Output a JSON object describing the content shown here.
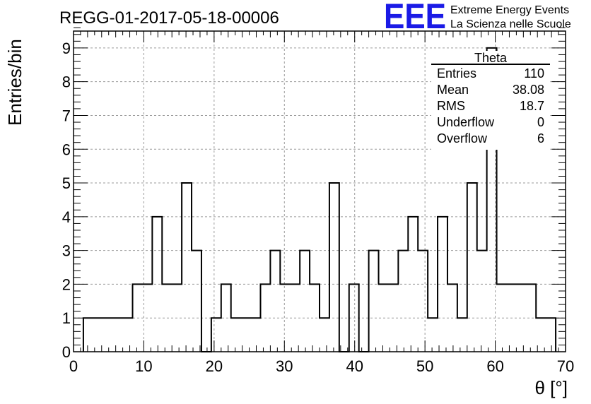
{
  "header": {
    "run_title": "REGG-01-2017-05-18-00006",
    "logo_text": "EEE",
    "brand_line1": "Extreme Energy Events",
    "brand_line2": "La Scienza nelle Scuole",
    "brand_color": "#1a1ae6"
  },
  "stats": {
    "title": "Theta",
    "rows": [
      {
        "label": "Entries",
        "value": "110"
      },
      {
        "label": "Mean",
        "value": "38.08"
      },
      {
        "label": "RMS",
        "value": "18.7"
      },
      {
        "label": "Underflow",
        "value": "0"
      },
      {
        "label": "Overflow",
        "value": "6"
      }
    ]
  },
  "chart_data": {
    "type": "histogram",
    "title": "REGG-01-2017-05-18-00006",
    "xlabel": "θ [°]",
    "ylabel": "Entries/bin",
    "xlim": [
      0,
      70
    ],
    "ylim": [
      0,
      9.5
    ],
    "x_ticks": [
      0,
      10,
      20,
      30,
      40,
      50,
      60,
      70
    ],
    "y_ticks": [
      0,
      1,
      2,
      3,
      4,
      5,
      6,
      7,
      8,
      9
    ],
    "grid": true,
    "legend": "top-right",
    "bins": [
      {
        "x0": 1.4,
        "x1": 8.4,
        "y": 1
      },
      {
        "x0": 8.4,
        "x1": 11.2,
        "y": 2
      },
      {
        "x0": 11.2,
        "x1": 12.6,
        "y": 4
      },
      {
        "x0": 12.6,
        "x1": 15.4,
        "y": 2
      },
      {
        "x0": 15.4,
        "x1": 16.8,
        "y": 5
      },
      {
        "x0": 16.8,
        "x1": 18.2,
        "y": 3
      },
      {
        "x0": 18.2,
        "x1": 19.6,
        "y": 0
      },
      {
        "x0": 19.6,
        "x1": 21.0,
        "y": 1
      },
      {
        "x0": 21.0,
        "x1": 22.4,
        "y": 2
      },
      {
        "x0": 22.4,
        "x1": 26.6,
        "y": 1
      },
      {
        "x0": 26.6,
        "x1": 28.0,
        "y": 2
      },
      {
        "x0": 28.0,
        "x1": 29.4,
        "y": 3
      },
      {
        "x0": 29.4,
        "x1": 32.2,
        "y": 2
      },
      {
        "x0": 32.2,
        "x1": 33.6,
        "y": 3
      },
      {
        "x0": 33.6,
        "x1": 35.0,
        "y": 2
      },
      {
        "x0": 35.0,
        "x1": 36.4,
        "y": 1
      },
      {
        "x0": 36.4,
        "x1": 37.8,
        "y": 5
      },
      {
        "x0": 37.8,
        "x1": 39.2,
        "y": 0
      },
      {
        "x0": 39.2,
        "x1": 40.6,
        "y": 2
      },
      {
        "x0": 40.6,
        "x1": 42.0,
        "y": 0
      },
      {
        "x0": 42.0,
        "x1": 43.4,
        "y": 3
      },
      {
        "x0": 43.4,
        "x1": 46.2,
        "y": 2
      },
      {
        "x0": 46.2,
        "x1": 47.6,
        "y": 3
      },
      {
        "x0": 47.6,
        "x1": 49.0,
        "y": 4
      },
      {
        "x0": 49.0,
        "x1": 50.4,
        "y": 3
      },
      {
        "x0": 50.4,
        "x1": 51.8,
        "y": 1
      },
      {
        "x0": 51.8,
        "x1": 53.2,
        "y": 4
      },
      {
        "x0": 53.2,
        "x1": 54.6,
        "y": 2
      },
      {
        "x0": 54.6,
        "x1": 56.0,
        "y": 1
      },
      {
        "x0": 56.0,
        "x1": 57.4,
        "y": 5
      },
      {
        "x0": 57.4,
        "x1": 58.8,
        "y": 3
      },
      {
        "x0": 58.8,
        "x1": 60.2,
        "y": 9
      },
      {
        "x0": 60.2,
        "x1": 65.8,
        "y": 2
      },
      {
        "x0": 65.8,
        "x1": 68.6,
        "y": 1
      }
    ]
  }
}
